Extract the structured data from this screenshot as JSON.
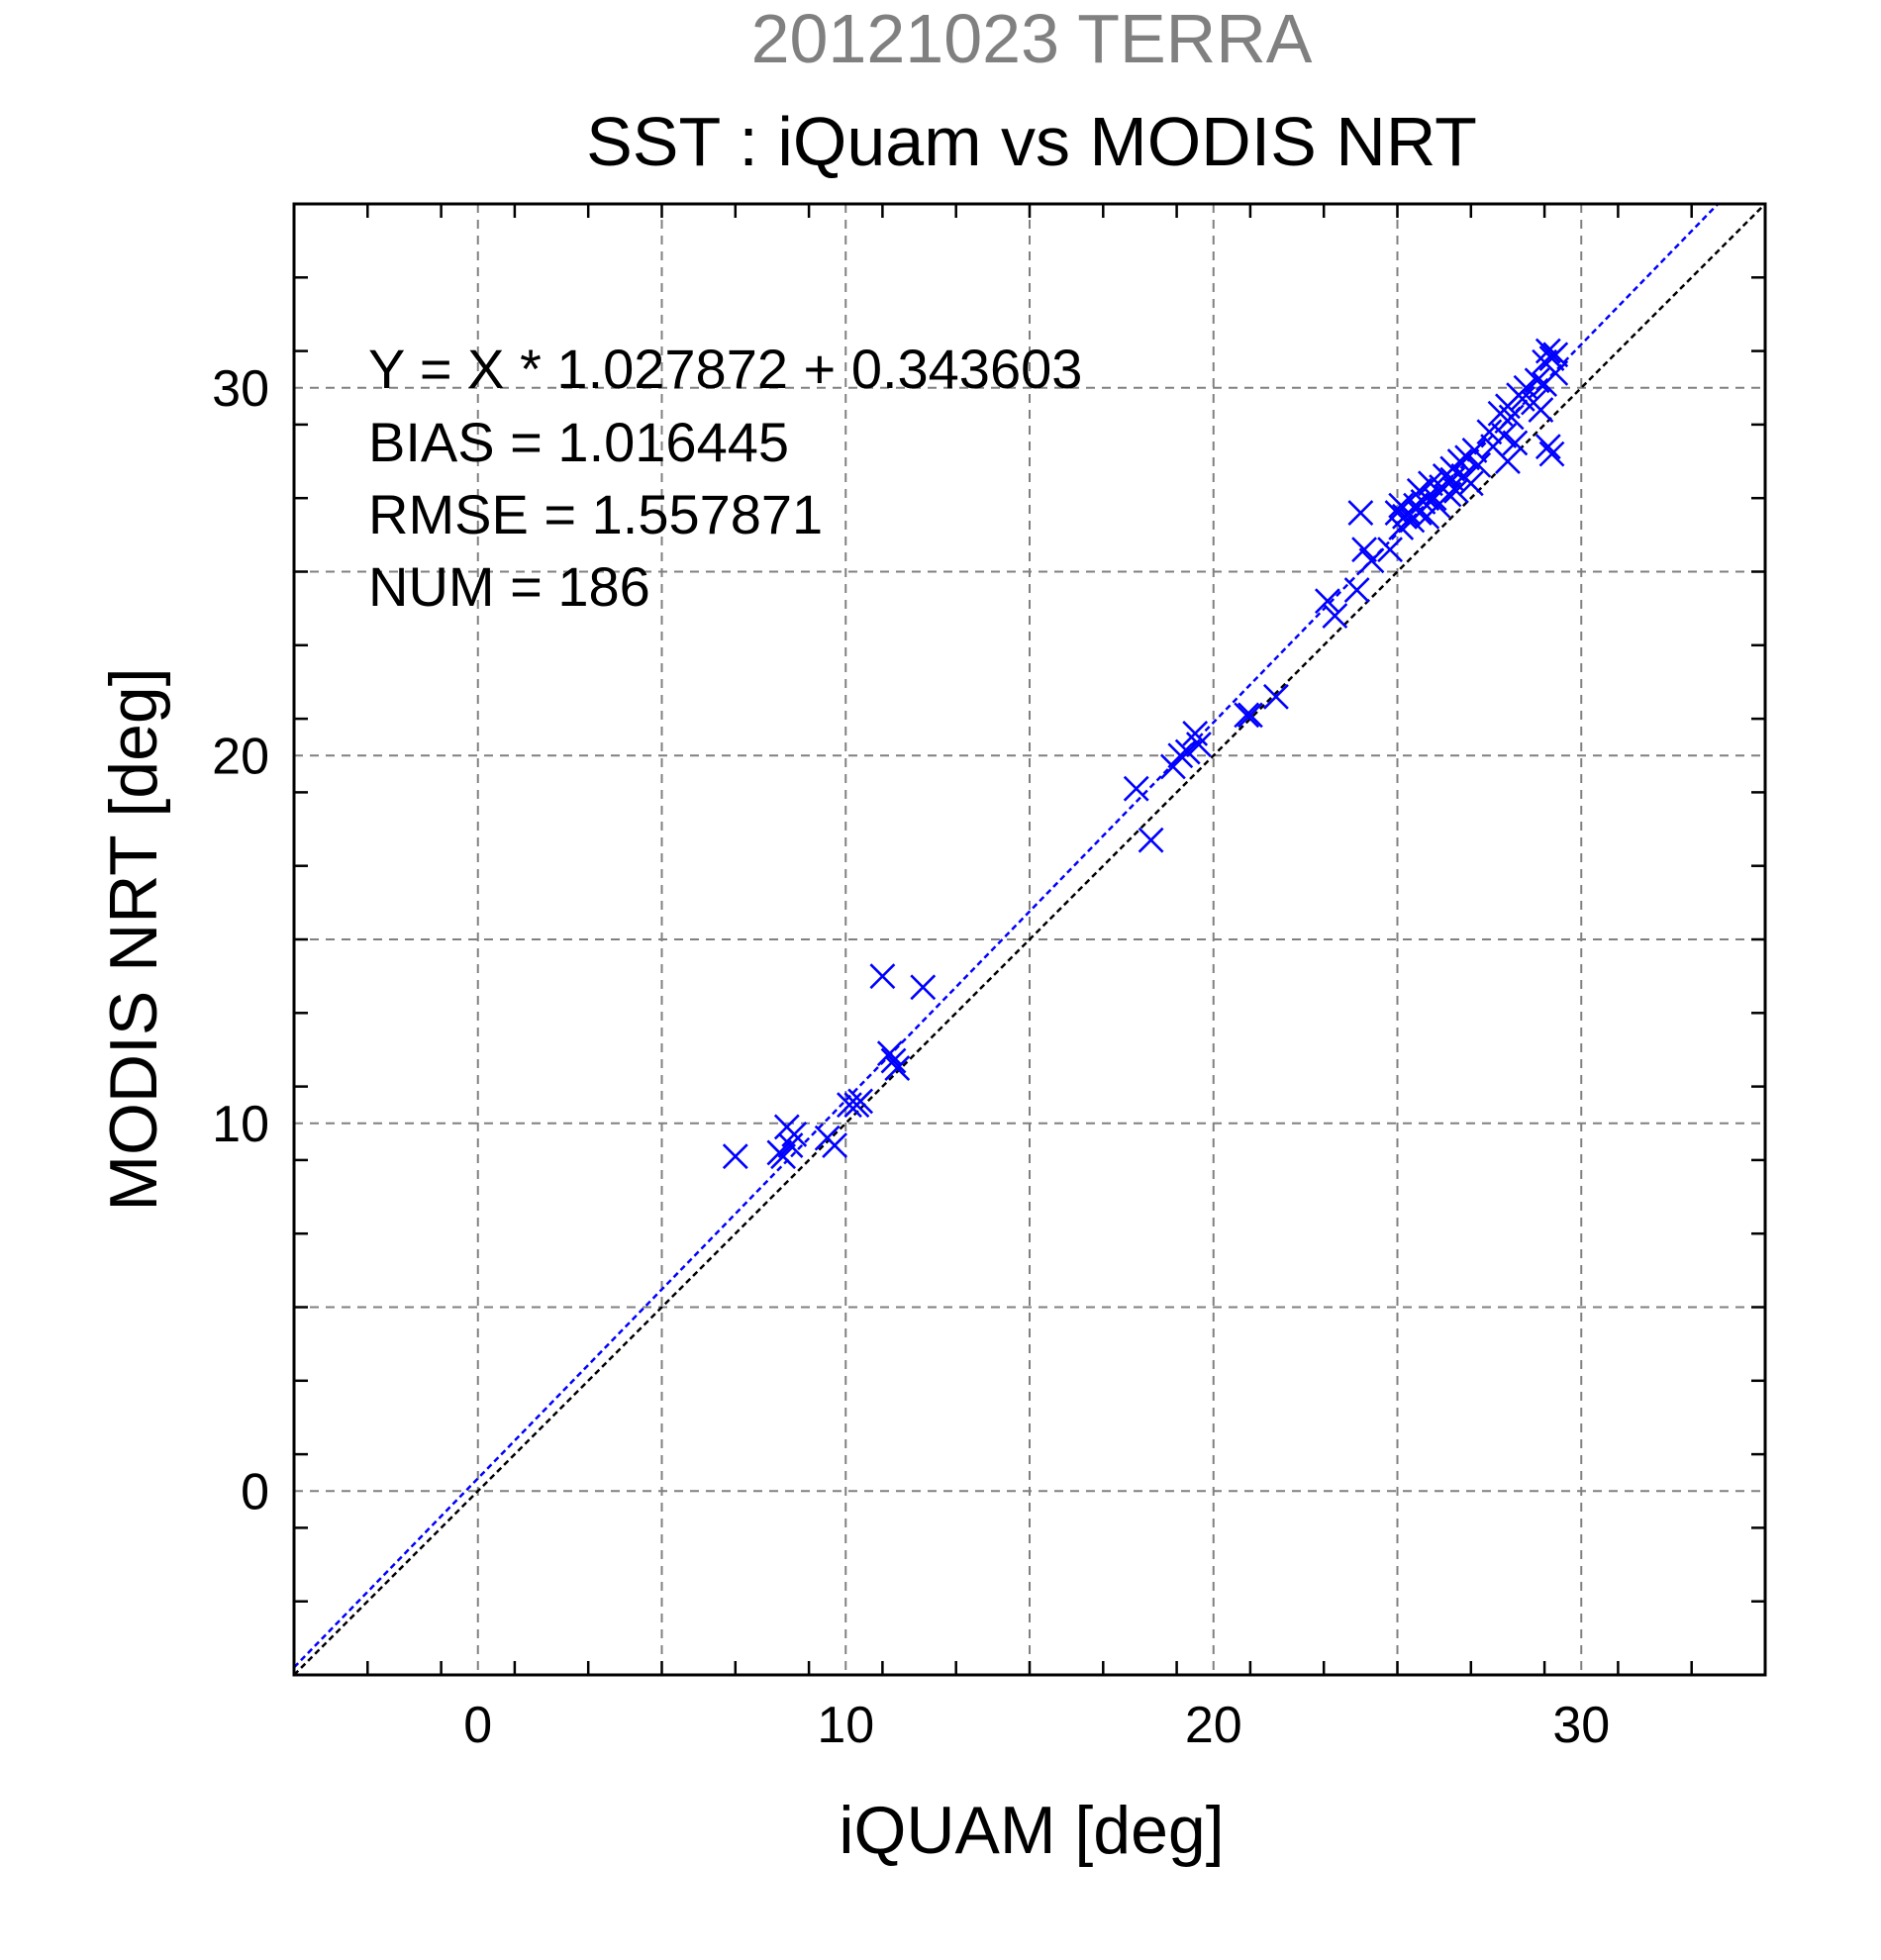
{
  "chart_data": {
    "type": "scatter",
    "supertitle": "20121023 TERRA",
    "title": "SST : iQuam vs MODIS NRT",
    "xlabel": "iQUAM [deg]",
    "ylabel": "MODIS NRT [deg]",
    "xlim": [
      -5,
      35
    ],
    "ylim": [
      -5,
      35
    ],
    "xticks": [
      0,
      10,
      20,
      30
    ],
    "yticks": [
      0,
      10,
      20,
      30
    ],
    "grid": true,
    "colors": {
      "points": "#0000ff",
      "fit_line": "#0000ff",
      "identity_line": "#000000",
      "grid": "#808080",
      "supertitle": "#808080"
    },
    "stats": [
      "Y = X * 1.027872 + 0.343603",
      "BIAS = 1.016445",
      "RMSE = 1.557871",
      "NUM = 186"
    ],
    "fit": {
      "slope": 1.027872,
      "intercept": 0.343603
    },
    "reference_line": {
      "slope": 1,
      "intercept": 0
    },
    "series": [
      {
        "marker": "x",
        "points": [
          [
            7.0,
            9.1
          ],
          [
            8.2,
            9.2
          ],
          [
            8.3,
            9.1
          ],
          [
            8.4,
            9.9
          ],
          [
            8.5,
            9.4
          ],
          [
            8.6,
            9.7
          ],
          [
            9.5,
            9.6
          ],
          [
            9.7,
            9.4
          ],
          [
            10.1,
            10.5
          ],
          [
            10.3,
            10.5
          ],
          [
            10.4,
            10.6
          ],
          [
            11.0,
            14.0
          ],
          [
            11.2,
            11.9
          ],
          [
            11.3,
            11.7
          ],
          [
            11.4,
            11.5
          ],
          [
            12.1,
            13.7
          ],
          [
            17.9,
            19.1
          ],
          [
            18.3,
            17.7
          ],
          [
            18.9,
            19.7
          ],
          [
            19.1,
            20.0
          ],
          [
            19.3,
            20.1
          ],
          [
            19.5,
            20.6
          ],
          [
            19.6,
            20.3
          ],
          [
            20.9,
            21.1
          ],
          [
            21.0,
            21.1
          ],
          [
            21.7,
            21.6
          ],
          [
            23.1,
            24.2
          ],
          [
            23.3,
            23.8
          ],
          [
            23.9,
            24.5
          ],
          [
            24.0,
            26.6
          ],
          [
            24.1,
            25.6
          ],
          [
            24.3,
            25.3
          ],
          [
            24.8,
            25.6
          ],
          [
            25.0,
            26.6
          ],
          [
            25.1,
            26.8
          ],
          [
            25.1,
            26.2
          ],
          [
            25.2,
            26.5
          ],
          [
            25.3,
            26.6
          ],
          [
            25.4,
            26.4
          ],
          [
            25.5,
            26.8
          ],
          [
            25.6,
            26.6
          ],
          [
            25.6,
            27.2
          ],
          [
            25.7,
            26.9
          ],
          [
            25.8,
            27.0
          ],
          [
            25.8,
            26.5
          ],
          [
            25.9,
            27.4
          ],
          [
            26.0,
            27.0
          ],
          [
            26.1,
            26.8
          ],
          [
            26.2,
            27.3
          ],
          [
            26.3,
            27.6
          ],
          [
            26.4,
            27.1
          ],
          [
            26.5,
            27.5
          ],
          [
            26.5,
            27.8
          ],
          [
            26.6,
            27.2
          ],
          [
            26.7,
            28.0
          ],
          [
            26.8,
            27.6
          ],
          [
            26.9,
            28.1
          ],
          [
            27.0,
            27.4
          ],
          [
            27.1,
            28.3
          ],
          [
            27.2,
            27.9
          ],
          [
            27.5,
            28.8
          ],
          [
            27.6,
            28.4
          ],
          [
            27.8,
            29.3
          ],
          [
            27.9,
            28.7
          ],
          [
            28.0,
            29.5
          ],
          [
            28.0,
            28.0
          ],
          [
            28.1,
            29.2
          ],
          [
            28.2,
            28.5
          ],
          [
            28.3,
            29.8
          ],
          [
            28.4,
            29.7
          ],
          [
            28.5,
            30.0
          ],
          [
            28.7,
            29.6
          ],
          [
            28.8,
            30.2
          ],
          [
            28.9,
            29.4
          ],
          [
            29.0,
            30.7
          ],
          [
            29.0,
            30.1
          ],
          [
            29.1,
            31.0
          ],
          [
            29.1,
            28.4
          ],
          [
            29.2,
            30.8
          ],
          [
            29.2,
            28.2
          ],
          [
            29.3,
            30.4
          ],
          [
            29.3,
            30.9
          ]
        ]
      }
    ]
  }
}
